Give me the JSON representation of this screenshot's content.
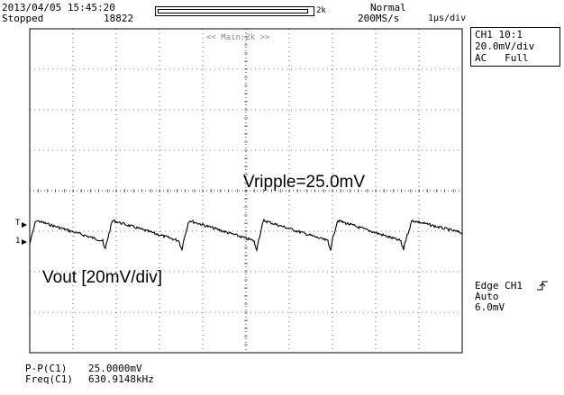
{
  "header": {
    "datetime": "2013/04/05 15:45:20",
    "status": "Stopped",
    "record_count": "18822",
    "record_length": "2k",
    "trigger_mode": "Normal",
    "sample_rate": "200MS/s",
    "time_div": "1μs/div"
  },
  "screen": {
    "main_label": "<< Main:2k >>",
    "ch1_marker": "1",
    "trig_marker": "T"
  },
  "channel_box": {
    "line1": "CH1 10:1",
    "line2": "20.0mV/div",
    "line3": "AC   Full"
  },
  "annotations": {
    "ripple": "Vripple=25.0mV",
    "vout": "Vout [20mV/div]"
  },
  "trigger": {
    "line1": "Edge CH1",
    "line2": "Auto",
    "line3": "6.0mV"
  },
  "measurements": [
    {
      "label": "P-P(C1)",
      "value": "25.0000mV"
    },
    {
      "label": "Freq(C1)",
      "value": "630.9148kHz"
    }
  ],
  "colors": {
    "trace": "#000000",
    "grid": "#000000"
  },
  "waveform": {
    "volts_per_div": 20,
    "vpp_mv": 25,
    "frequency_khz": 630.9148,
    "time_per_div_us": 1
  }
}
